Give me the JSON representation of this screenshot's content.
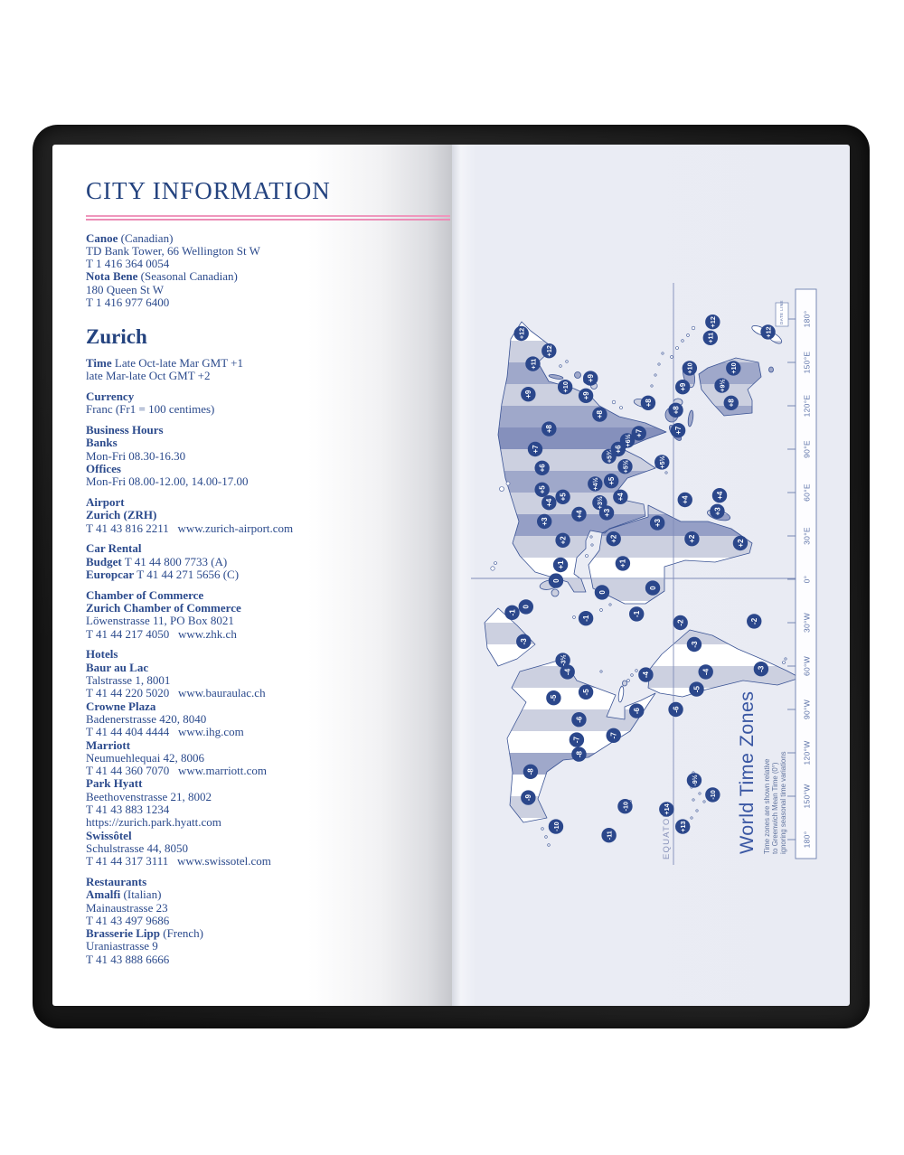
{
  "colors": {
    "ink_blue": "#2b4a8c",
    "title_blue": "#24437f",
    "pink_rule": "#ee90b9",
    "page_lavender": "#e9ebf3",
    "map_outline": "#3a5394",
    "badge_navy": "#2b478b",
    "zone_light": "#c9cede",
    "zone_mid": "#9aa3c7",
    "zone_dark": "#7e8ab8",
    "scale_text": "#5d73a8",
    "map_title_blue": "#3a57a3"
  },
  "left_page": {
    "title": "CITY INFORMATION",
    "sections": [
      {
        "cls": "first",
        "lines": [
          [
            [
              "Canoe",
              1
            ],
            [
              " (Canadian)",
              0
            ]
          ],
          [
            [
              "TD Bank Tower, 66 Wellington St W",
              0
            ]
          ],
          [
            [
              "T 1 416 364 0054",
              0
            ]
          ],
          [
            [
              "Nota Bene",
              1
            ],
            [
              " (Seasonal Canadian)",
              0
            ]
          ],
          [
            [
              "180 Queen St W",
              0
            ]
          ],
          [
            [
              "T 1 416 977 6400",
              0
            ]
          ]
        ]
      },
      {
        "cls": "city",
        "lines": [
          [
            [
              "Zurich",
              1
            ]
          ]
        ]
      },
      {
        "cls": "",
        "lines": [
          [
            [
              "Time",
              1
            ],
            [
              " Late Oct-late Mar GMT +1",
              0
            ]
          ],
          [
            [
              "late Mar-late Oct GMT +2",
              0
            ]
          ]
        ]
      },
      {
        "cls": "",
        "lines": [
          [
            [
              "Currency",
              1
            ]
          ],
          [
            [
              "Franc (Fr1 = 100 centimes)",
              0
            ]
          ]
        ]
      },
      {
        "cls": "",
        "lines": [
          [
            [
              "Business Hours",
              1
            ]
          ],
          [
            [
              "Banks",
              1
            ]
          ],
          [
            [
              "Mon-Fri 08.30-16.30",
              0
            ]
          ],
          [
            [
              "Offices",
              1
            ]
          ],
          [
            [
              "Mon-Fri 08.00-12.00, 14.00-17.00",
              0
            ]
          ]
        ]
      },
      {
        "cls": "",
        "lines": [
          [
            [
              "Airport",
              1
            ]
          ],
          [
            [
              "Zurich (ZRH)",
              1
            ]
          ],
          [
            [
              "T 41 43 816 2211   www.zurich-airport.com",
              0
            ]
          ]
        ]
      },
      {
        "cls": "",
        "lines": [
          [
            [
              "Car Rental",
              1
            ]
          ],
          [
            [
              "Budget",
              1
            ],
            [
              " T 41 44 800 7733 (A)",
              0
            ]
          ],
          [
            [
              "Europcar",
              1
            ],
            [
              " T 41 44 271 5656 (C)",
              0
            ]
          ]
        ]
      },
      {
        "cls": "",
        "lines": [
          [
            [
              "Chamber of Commerce",
              1
            ]
          ],
          [
            [
              "Zurich Chamber of Commerce",
              1
            ]
          ],
          [
            [
              "Löwenstrasse 11, PO Box 8021",
              0
            ]
          ],
          [
            [
              "T 41 44 217 4050   www.zhk.ch",
              0
            ]
          ]
        ]
      },
      {
        "cls": "",
        "lines": [
          [
            [
              "Hotels",
              1
            ]
          ],
          [
            [
              "Baur au Lac",
              1
            ]
          ],
          [
            [
              "Talstrasse 1, 8001",
              0
            ]
          ],
          [
            [
              "T 41 44 220 5020   www.bauraulac.ch",
              0
            ]
          ],
          [
            [
              "Crowne Plaza",
              1
            ]
          ],
          [
            [
              "Badenerstrasse 420, 8040",
              0
            ]
          ],
          [
            [
              "T 41 44 404 4444   www.ihg.com",
              0
            ]
          ],
          [
            [
              "Marriott",
              1
            ]
          ],
          [
            [
              "Neumuehlequai 42, 8006",
              0
            ]
          ],
          [
            [
              "T 41 44 360 7070   www.marriott.com",
              0
            ]
          ],
          [
            [
              "Park Hyatt",
              1
            ]
          ],
          [
            [
              "Beethovenstrasse 21, 8002",
              0
            ]
          ],
          [
            [
              "T 41 43 883 1234",
              0
            ]
          ],
          [
            [
              "https://zurich.park.hyatt.com",
              0
            ]
          ],
          [
            [
              "Swissôtel",
              1
            ]
          ],
          [
            [
              "Schulstrasse 44, 8050",
              0
            ]
          ],
          [
            [
              "T 41 44 317 3111   www.swissotel.com",
              0
            ]
          ]
        ]
      },
      {
        "cls": "",
        "lines": [
          [
            [
              "Restaurants",
              1
            ]
          ],
          [
            [
              "Amalfi",
              1
            ],
            [
              " (Italian)",
              0
            ]
          ],
          [
            [
              "Mainaustrasse 23",
              0
            ]
          ],
          [
            [
              "T 41 43 497 9686",
              0
            ]
          ],
          [
            [
              "Brasserie Lipp",
              1
            ],
            [
              " (French)",
              0
            ]
          ],
          [
            [
              "Uraniastrasse 9",
              0
            ]
          ],
          [
            [
              "T 41 43 888 6666",
              0
            ]
          ]
        ]
      }
    ]
  },
  "right_page": {
    "map": {
      "title": "World Time Zones",
      "subtitle_lines": [
        "Time zones are shown relative",
        "to Greenwich Mean Time (0°)",
        "ignoring seasonal time variations"
      ],
      "equator_label": "EQUATOR",
      "date_line_label": "DATE LINE",
      "scale_labels": [
        "180°",
        "150°E",
        "120°E",
        "90°E",
        "60°E",
        "30°E",
        "0°",
        "30°W",
        "60°W",
        "90°W",
        "120°W",
        "150°W",
        "180°"
      ],
      "badges": [
        {
          "label": "+12",
          "lon": 170,
          "lat": 66
        },
        {
          "label": "+12",
          "lon": 158,
          "lat": 54
        },
        {
          "label": "+11",
          "lon": 149,
          "lat": 61
        },
        {
          "label": "+10",
          "lon": 133,
          "lat": 47
        },
        {
          "label": "+9",
          "lon": 128,
          "lat": 63
        },
        {
          "label": "+8",
          "lon": 104,
          "lat": 54
        },
        {
          "label": "+7",
          "lon": 90,
          "lat": 60
        },
        {
          "label": "+6",
          "lon": 77,
          "lat": 57
        },
        {
          "label": "+5",
          "lon": 62,
          "lat": 57
        },
        {
          "label": "+4",
          "lon": 53,
          "lat": 54
        },
        {
          "label": "+3",
          "lon": 40,
          "lat": 56
        },
        {
          "label": "0",
          "lon": -19,
          "lat": 64
        },
        {
          "label": "0",
          "lon": -1,
          "lat": 51
        },
        {
          "label": "+1",
          "lon": 10,
          "lat": 49
        },
        {
          "label": "+2",
          "lon": 27,
          "lat": 48
        },
        {
          "label": "-1",
          "lon": -27,
          "lat": 38
        },
        {
          "label": "0",
          "lon": -9,
          "lat": 31
        },
        {
          "label": "+1",
          "lon": 11,
          "lat": 22
        },
        {
          "label": "0",
          "lon": -6,
          "lat": 9
        },
        {
          "label": "-1",
          "lon": -24,
          "lat": 16
        },
        {
          "label": "+2",
          "lon": 28,
          "lat": 26
        },
        {
          "label": "+2",
          "lon": 28,
          "lat": -8
        },
        {
          "label": "+2",
          "lon": 25,
          "lat": -29
        },
        {
          "label": "+3",
          "lon": 46,
          "lat": 29
        },
        {
          "label": "+3",
          "lon": 39,
          "lat": 7
        },
        {
          "label": "+3",
          "lon": 47,
          "lat": -19
        },
        {
          "label": "+3½",
          "lon": 53,
          "lat": 32
        },
        {
          "label": "+4",
          "lon": 45,
          "lat": 41
        },
        {
          "label": "+4",
          "lon": 57,
          "lat": 23
        },
        {
          "label": "+4",
          "lon": 55,
          "lat": -5
        },
        {
          "label": "+4",
          "lon": 58,
          "lat": -20
        },
        {
          "label": "+4½",
          "lon": 66,
          "lat": 34
        },
        {
          "label": "+5",
          "lon": 68,
          "lat": 27
        },
        {
          "label": "+5",
          "lon": 57,
          "lat": 48
        },
        {
          "label": "+5½",
          "lon": 78,
          "lat": 21
        },
        {
          "label": "+5½",
          "lon": 81,
          "lat": 5
        },
        {
          "label": "+5¾",
          "lon": 85,
          "lat": 28
        },
        {
          "label": "+6",
          "lon": 90,
          "lat": 24
        },
        {
          "label": "+6½",
          "lon": 96,
          "lat": 20
        },
        {
          "label": "+7",
          "lon": 101,
          "lat": 15
        },
        {
          "label": "+7",
          "lon": 103,
          "lat": -2
        },
        {
          "label": "+8",
          "lon": 114,
          "lat": 32
        },
        {
          "label": "+8",
          "lon": 117,
          "lat": -1
        },
        {
          "label": "+8",
          "lon": 122,
          "lat": -25
        },
        {
          "label": "+8",
          "lon": 122,
          "lat": 11
        },
        {
          "label": "+9",
          "lon": 127,
          "lat": 38
        },
        {
          "label": "+9",
          "lon": 139,
          "lat": 36
        },
        {
          "label": "+9",
          "lon": 133,
          "lat": -4
        },
        {
          "label": "+9½",
          "lon": 134,
          "lat": -21
        },
        {
          "label": "+10",
          "lon": 146,
          "lat": -7
        },
        {
          "label": "+10",
          "lon": 146,
          "lat": -26
        },
        {
          "label": "+11",
          "lon": 167,
          "lat": -16
        },
        {
          "label": "+12",
          "lon": 178,
          "lat": -17
        },
        {
          "label": "+12",
          "lon": 171,
          "lat": -41
        },
        {
          "label": "+13",
          "lon": -171,
          "lat": -4
        },
        {
          "label": "+14",
          "lon": -159,
          "lat": 3
        },
        {
          "label": "-11",
          "lon": -177,
          "lat": 28
        },
        {
          "label": "-10",
          "lon": -171,
          "lat": 51
        },
        {
          "label": "-10",
          "lon": -157,
          "lat": 21
        },
        {
          "label": "-10",
          "lon": -149,
          "lat": -17
        },
        {
          "label": "-9½",
          "lon": -139,
          "lat": -9
        },
        {
          "label": "-9",
          "lon": -151,
          "lat": 63
        },
        {
          "label": "-8",
          "lon": -133,
          "lat": 62
        },
        {
          "label": "-8",
          "lon": -121,
          "lat": 41
        },
        {
          "label": "-7",
          "lon": -111,
          "lat": 42
        },
        {
          "label": "-7",
          "lon": -108,
          "lat": 26
        },
        {
          "label": "-6",
          "lon": -97,
          "lat": 41
        },
        {
          "label": "-6",
          "lon": -91,
          "lat": 16
        },
        {
          "label": "-6",
          "lon": -90,
          "lat": -1
        },
        {
          "label": "-5",
          "lon": -82,
          "lat": 52
        },
        {
          "label": "-5",
          "lon": -78,
          "lat": 38
        },
        {
          "label": "-5",
          "lon": -76,
          "lat": -10
        },
        {
          "label": "-4",
          "lon": -64,
          "lat": 46
        },
        {
          "label": "-4",
          "lon": -66,
          "lat": 12
        },
        {
          "label": "-4",
          "lon": -64,
          "lat": -14
        },
        {
          "label": "-3½",
          "lon": -56,
          "lat": 48
        },
        {
          "label": "-3",
          "lon": -43,
          "lat": 65
        },
        {
          "label": "-3",
          "lon": -45,
          "lat": -9
        },
        {
          "label": "-3",
          "lon": -62,
          "lat": -38
        },
        {
          "label": "-2",
          "lon": -30,
          "lat": -3
        },
        {
          "label": "-2",
          "lon": -29,
          "lat": -35
        },
        {
          "label": "-1",
          "lon": -23,
          "lat": 70
        }
      ]
    }
  }
}
